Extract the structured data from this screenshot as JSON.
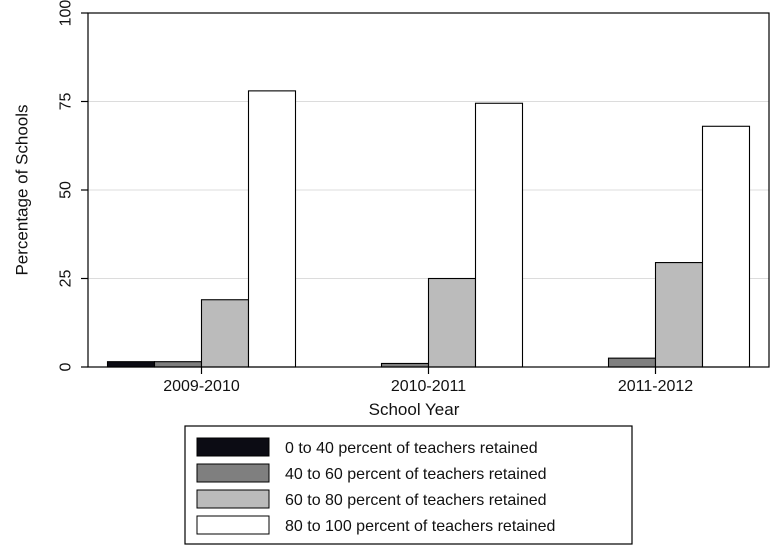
{
  "chart_data": {
    "type": "bar",
    "categories": [
      "2009-2010",
      "2010-2011",
      "2011-2012"
    ],
    "series": [
      {
        "name": "0 to 40 percent of teachers retained",
        "color": "#0c0c14",
        "values": [
          1.5,
          0,
          0
        ]
      },
      {
        "name": "40 to 60 percent of teachers retained",
        "color": "#7f7f7f",
        "values": [
          1.5,
          1,
          2.5
        ]
      },
      {
        "name": "60 to 80 percent of teachers retained",
        "color": "#bbbbbb",
        "values": [
          19,
          25,
          29.5
        ]
      },
      {
        "name": "80 to 100 percent of teachers retained",
        "color": "#ffffff",
        "values": [
          78,
          74.5,
          68
        ]
      }
    ],
    "xlabel": "School Year",
    "ylabel": "Percentage of Schools",
    "ylim": [
      0,
      100
    ],
    "yticks": [
      0,
      25,
      50,
      75,
      100
    ],
    "grid": true,
    "legend_position": "bottom"
  }
}
